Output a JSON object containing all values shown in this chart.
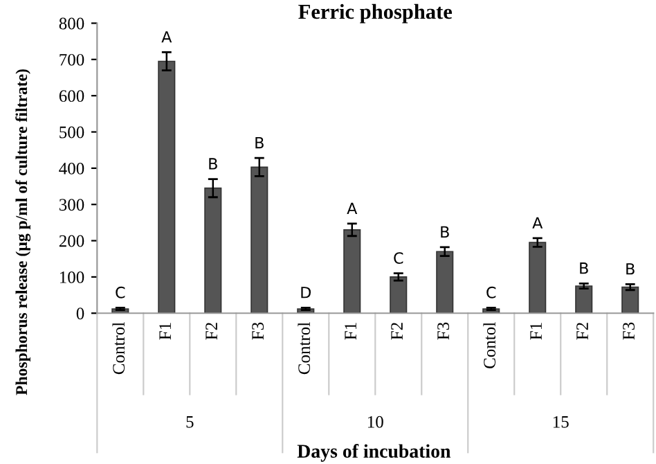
{
  "chart_data": {
    "type": "bar",
    "title": "Ferric phosphate",
    "xlabel": "Days of incubation",
    "ylabel": "Phosphorus release (µg p/ml of culture filtrate)",
    "categories": [
      "Control",
      "F1",
      "F2",
      "F3",
      "Control",
      "F1",
      "F2",
      "F3",
      "Contol",
      "F1",
      "F2",
      "F3"
    ],
    "values": [
      12,
      695,
      345,
      403,
      12,
      230,
      100,
      170,
      12,
      195,
      75,
      72
    ],
    "errors": [
      3,
      25,
      25,
      25,
      3,
      17,
      10,
      12,
      3,
      12,
      7,
      8
    ],
    "value_labels": [
      "C",
      "A",
      "B",
      "B",
      "D",
      "A",
      "C",
      "B",
      "C",
      "A",
      "B",
      "B"
    ],
    "annotations": [
      "5",
      "10",
      "15"
    ],
    "color": "#555555",
    "ylim": [
      0,
      800
    ],
    "yticks": [
      0,
      100,
      200,
      300,
      400,
      500,
      600,
      700,
      800
    ],
    "grid": false
  }
}
